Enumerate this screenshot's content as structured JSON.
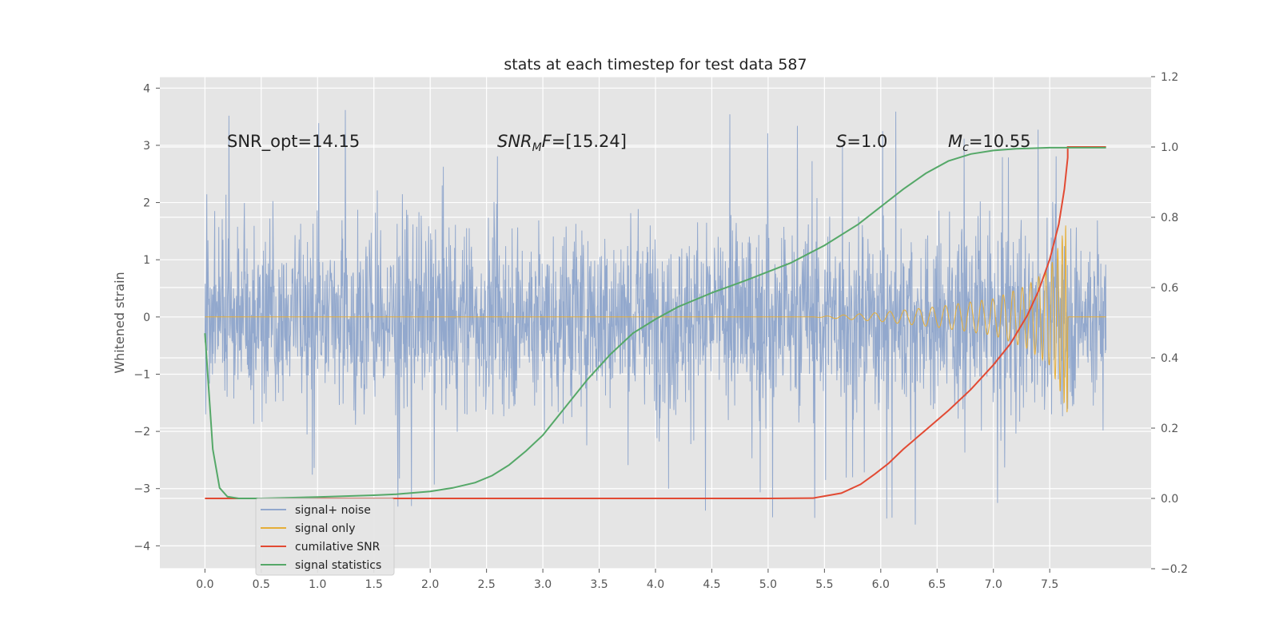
{
  "chart_data": {
    "type": "line",
    "title": "stats at each timestep for test data 587",
    "ylabel": "Whitened strain",
    "xlabel": "",
    "xlim": [
      -0.4,
      8.4
    ],
    "ylim": [
      -4.4,
      4.2
    ],
    "y2lim": [
      -0.2,
      1.2
    ],
    "xticks": [
      0.0,
      0.5,
      1.0,
      1.5,
      2.0,
      2.5,
      3.0,
      3.5,
      4.0,
      4.5,
      5.0,
      5.5,
      6.0,
      6.5,
      7.0,
      7.5
    ],
    "xtick_labels": [
      "0.0",
      "0.5",
      "1.0",
      "1.5",
      "2.0",
      "2.5",
      "3.0",
      "3.5",
      "4.0",
      "4.5",
      "5.0",
      "5.5",
      "6.0",
      "6.5",
      "7.0",
      "7.5"
    ],
    "yticks": [
      -4,
      -3,
      -2,
      -1,
      0,
      1,
      2,
      3,
      4
    ],
    "ytick_labels": [
      "−4",
      "−3",
      "−2",
      "−1",
      "0",
      "1",
      "2",
      "3",
      "4"
    ],
    "y2ticks": [
      -0.2,
      0.0,
      0.2,
      0.4,
      0.6,
      0.8,
      1.0,
      1.2
    ],
    "y2tick_labels": [
      "−0.2",
      "0.0",
      "0.2",
      "0.4",
      "0.6",
      "0.8",
      "1.0",
      "1.2"
    ],
    "grid": true,
    "legend_position": "lower-left",
    "series": [
      {
        "name": "signal+ noise",
        "color": "#92a8cd",
        "axis": "left",
        "kind": "noise",
        "x_range": [
          0.0,
          8.0
        ],
        "envelope": {
          "typical_abs": 1.5,
          "peak_max": 3.8,
          "peak_min": -4.0
        }
      },
      {
        "name": "signal only",
        "color": "#e5ae38",
        "axis": "left",
        "kind": "chirp",
        "x_range": [
          0.0,
          8.0
        ],
        "merger_time": 7.66,
        "amplitude_envelope": [
          [
            5.4,
            0.0
          ],
          [
            6.0,
            0.08
          ],
          [
            6.5,
            0.18
          ],
          [
            7.0,
            0.32
          ],
          [
            7.3,
            0.55
          ],
          [
            7.5,
            0.85
          ],
          [
            7.6,
            1.35
          ],
          [
            7.66,
            1.75
          ],
          [
            7.67,
            0.0
          ],
          [
            8.0,
            0.0
          ]
        ]
      },
      {
        "name": "cumilative SNR",
        "color": "#e24a33",
        "axis": "right",
        "x": [
          0.0,
          1.0,
          2.0,
          3.0,
          4.0,
          5.0,
          5.4,
          5.65,
          5.82,
          5.95,
          6.07,
          6.2,
          6.4,
          6.6,
          6.8,
          7.0,
          7.15,
          7.3,
          7.4,
          7.5,
          7.58,
          7.63,
          7.66,
          7.66,
          8.0
        ],
        "values": [
          0.0,
          0.0,
          0.0,
          0.0,
          0.0,
          0.0,
          0.001,
          0.015,
          0.04,
          0.07,
          0.1,
          0.14,
          0.195,
          0.25,
          0.31,
          0.38,
          0.44,
          0.52,
          0.59,
          0.68,
          0.78,
          0.88,
          0.97,
          1.0,
          1.0
        ]
      },
      {
        "name": "signal statistics",
        "color": "#55a868",
        "axis": "right",
        "x": [
          0.0,
          0.07,
          0.13,
          0.2,
          0.3,
          0.5,
          1.0,
          1.5,
          1.7,
          2.0,
          2.2,
          2.4,
          2.55,
          2.7,
          2.85,
          3.0,
          3.2,
          3.4,
          3.6,
          3.8,
          4.0,
          4.2,
          4.5,
          4.8,
          5.0,
          5.2,
          5.5,
          5.8,
          6.0,
          6.2,
          6.4,
          6.6,
          6.8,
          7.0,
          7.2,
          7.5,
          8.0
        ],
        "values": [
          0.47,
          0.14,
          0.03,
          0.005,
          0.0,
          0.0,
          0.004,
          0.009,
          0.012,
          0.02,
          0.03,
          0.045,
          0.065,
          0.095,
          0.135,
          0.18,
          0.26,
          0.34,
          0.41,
          0.47,
          0.51,
          0.545,
          0.585,
          0.62,
          0.645,
          0.67,
          0.72,
          0.78,
          0.83,
          0.88,
          0.925,
          0.96,
          0.98,
          0.99,
          0.995,
          0.998,
          0.998
        ]
      }
    ],
    "annotations": [
      {
        "x": 0.2,
        "y": 3.0,
        "text": "SNR_opt=14.15"
      },
      {
        "x": 2.6,
        "y": 3.0,
        "text": "SNR_MF=[15.24]"
      },
      {
        "x": 5.6,
        "y": 3.0,
        "text": "S=1.0"
      },
      {
        "x": 6.6,
        "y": 3.0,
        "text": "M_c=10.55"
      }
    ]
  },
  "colors": {
    "axes_background": "#e5e5e5",
    "grid": "#ffffff",
    "tick_text": "#555555",
    "text": "#222222"
  }
}
